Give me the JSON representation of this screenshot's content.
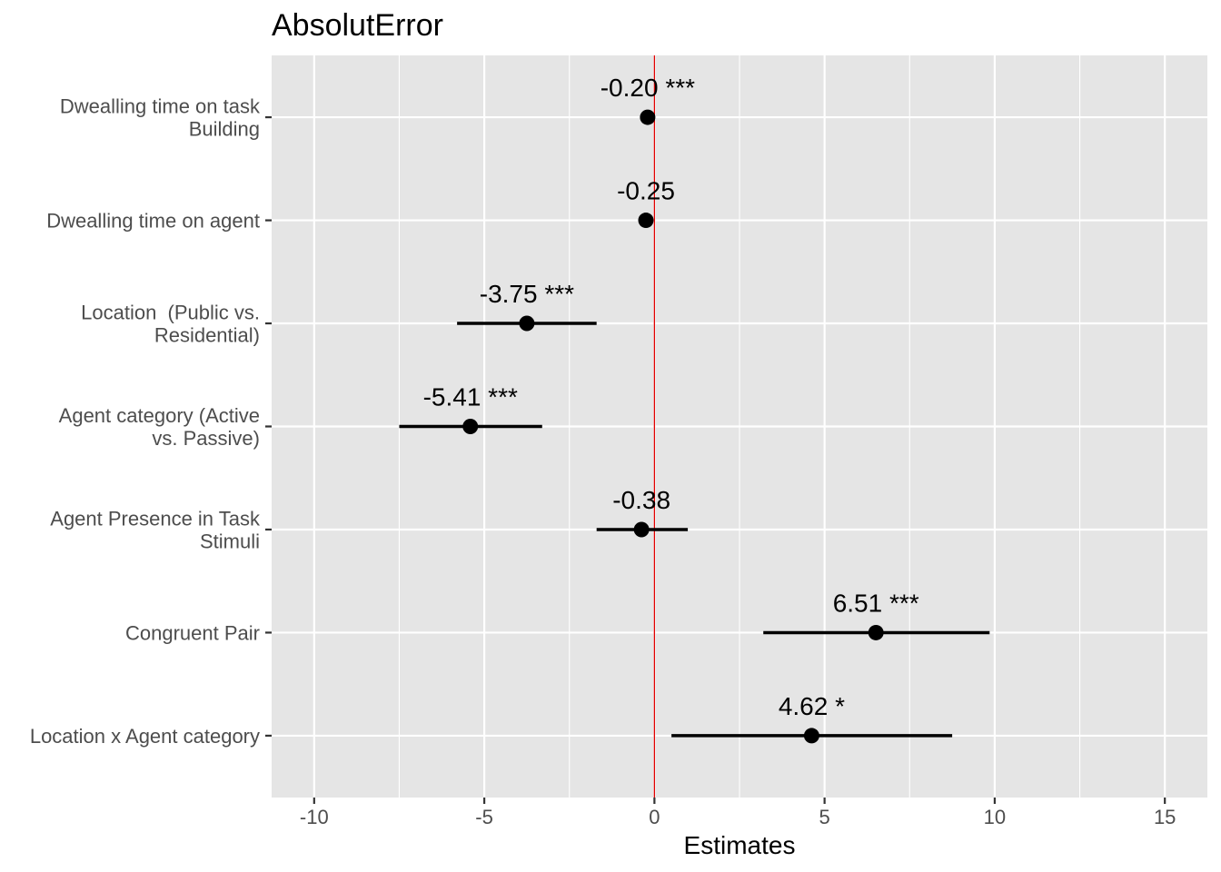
{
  "chart_data": {
    "type": "scatter",
    "subtype": "coefficient-plot",
    "title": "AbsolutError",
    "xlabel": "Estimates",
    "ylabel": "",
    "xlim": [
      -11.25,
      16.25
    ],
    "x_ticks": [
      -10,
      -5,
      0,
      5,
      10,
      15
    ],
    "x_tick_labels": [
      "-10",
      "-5",
      "0",
      "5",
      "10",
      "15"
    ],
    "reference_line": {
      "x": 0,
      "color": "#e00000"
    },
    "grid": true,
    "legend": "none",
    "colors": {
      "panel_bg": "#e5e5e5",
      "grid": "#ffffff",
      "point": "#000000",
      "axis_text": "#4d4d4d"
    },
    "terms": [
      {
        "label": [
          "Dwealling time on task",
          "Building"
        ],
        "estimate": -0.2,
        "ci": null,
        "annotation": "-0.20 ***"
      },
      {
        "label": [
          "Dwealling time on agent"
        ],
        "estimate": -0.25,
        "ci": null,
        "annotation": "-0.25"
      },
      {
        "label": [
          "Location  (Public vs.",
          "Residential)"
        ],
        "estimate": -3.75,
        "ci": [
          -5.8,
          -1.7
        ],
        "annotation": "-3.75 ***"
      },
      {
        "label": [
          "Agent category (Active",
          "vs. Passive)"
        ],
        "estimate": -5.41,
        "ci": [
          -7.5,
          -3.3
        ],
        "annotation": "-5.41 ***"
      },
      {
        "label": [
          "Agent Presence in Task",
          "Stimuli"
        ],
        "estimate": -0.38,
        "ci": [
          -1.7,
          0.98
        ],
        "annotation": "-0.38"
      },
      {
        "label": [
          "Congruent Pair"
        ],
        "estimate": 6.51,
        "ci": [
          3.2,
          9.85
        ],
        "annotation": "6.51 ***"
      },
      {
        "label": [
          "Location x Agent category"
        ],
        "estimate": 4.62,
        "ci": [
          0.5,
          8.75
        ],
        "annotation": "4.62 *"
      }
    ]
  }
}
